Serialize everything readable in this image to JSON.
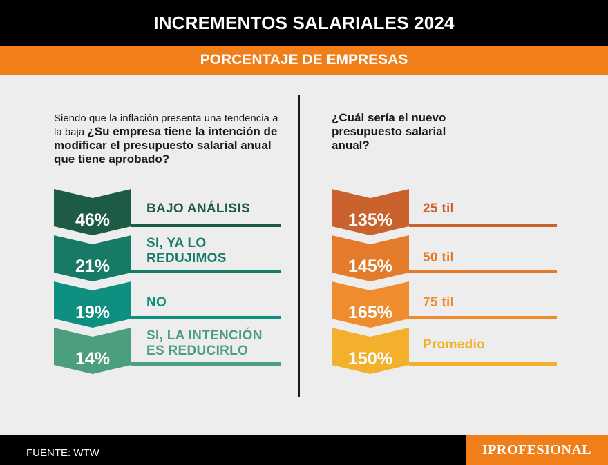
{
  "title": "INCREMENTOS SALARIALES 2024",
  "subtitle": "PORCENTAJE DE EMPRESAS",
  "left": {
    "question_plain": "Siendo que la inflación presenta una tendencia a la baja",
    "question_bold": "¿Su empresa tiene la intención de modificar el presupuesto salarial anual que tiene aprobado?"
  },
  "right": {
    "question": "¿Cuál sería el nuevo presupuesto salarial anual?"
  },
  "chart_data": [
    {
      "type": "bar",
      "title": "¿Su empresa tiene la intención de modificar el presupuesto salarial anual que tiene aprobado?",
      "categories": [
        "BAJO ANÁLISIS",
        "SI, YA LO REDUJIMOS",
        "NO",
        "SI, LA INTENCIÓN ES REDUCIRLO"
      ],
      "values": [
        46,
        21,
        19,
        14
      ],
      "value_labels": [
        "46%",
        "21%",
        "19%",
        "14%"
      ],
      "colors": [
        "#1e5b45",
        "#167a67",
        "#0f8f80",
        "#4b9e7e"
      ],
      "unit": "%"
    },
    {
      "type": "bar",
      "title": "¿Cuál sería el nuevo presupuesto salarial anual?",
      "categories": [
        "25 til",
        "50 til",
        "75 til",
        "Promedio"
      ],
      "values": [
        135,
        145,
        165,
        150
      ],
      "value_labels": [
        "135%",
        "145%",
        "165%",
        "150%"
      ],
      "colors": [
        "#c9622c",
        "#e47b2a",
        "#ef8c2e",
        "#f2b02c"
      ],
      "unit": "%"
    }
  ],
  "footer": {
    "source": "FUENTE: WTW",
    "brand": "IPROFESIONAL"
  }
}
